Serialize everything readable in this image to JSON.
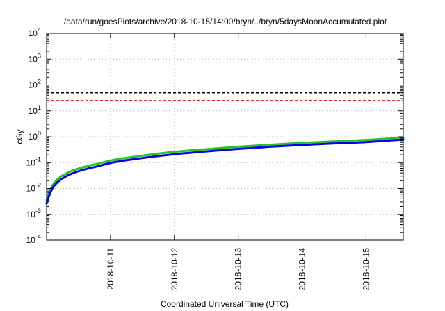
{
  "chart_data": {
    "type": "line",
    "title": "/data/run/goesPlots/archive/2018-10-15/14:00/bryn/../bryn/5daysMoonAccumulated.plot",
    "xlabel": "Coordinated Universal Time (UTC)",
    "ylabel": "cGy",
    "y_scale": "log",
    "ylim": [
      0.0001,
      10000
    ],
    "xlim": [
      "2018-10-10T00:00",
      "2018-10-15T14:00"
    ],
    "grid": true,
    "x_ticks": [
      "2018-10-11",
      "2018-10-12",
      "2018-10-13",
      "2018-10-14",
      "2018-10-15"
    ],
    "y_ticks": [
      {
        "base": "10",
        "exp": "-4",
        "value": 0.0001
      },
      {
        "base": "10",
        "exp": "-3",
        "value": 0.001
      },
      {
        "base": "10",
        "exp": "-2",
        "value": 0.01
      },
      {
        "base": "10",
        "exp": "-1",
        "value": 0.1
      },
      {
        "base": "10",
        "exp": "0",
        "value": 1
      },
      {
        "base": "10",
        "exp": "1",
        "value": 10
      },
      {
        "base": "10",
        "exp": "2",
        "value": 100
      },
      {
        "base": "10",
        "exp": "3",
        "value": 1000
      },
      {
        "base": "10",
        "exp": "4",
        "value": 10000
      }
    ],
    "reference_lines": [
      {
        "value": 50,
        "color": "#000000",
        "style": "dashed"
      },
      {
        "value": 25,
        "color": "#ff0000",
        "style": "dashed"
      }
    ],
    "series": [
      {
        "color": "#22c522",
        "x": [
          "2018-10-10T00:00",
          "2018-10-10T01:12",
          "2018-10-10T02:24",
          "2018-10-10T04:48",
          "2018-10-10T07:12",
          "2018-10-10T09:36",
          "2018-10-10T14:24",
          "2018-10-10T19:12",
          "2018-10-11T00:00",
          "2018-10-11T12:00",
          "2018-10-12T00:00",
          "2018-10-12T12:00",
          "2018-10-13T00:00",
          "2018-10-13T12:00",
          "2018-10-14T00:00",
          "2018-10-14T12:00",
          "2018-10-15T00:00",
          "2018-10-15T14:00"
        ],
        "values": [
          0.0035,
          0.008,
          0.014,
          0.026,
          0.037,
          0.048,
          0.069,
          0.09,
          0.12,
          0.185,
          0.26,
          0.33,
          0.41,
          0.49,
          0.58,
          0.66,
          0.75,
          0.92
        ]
      },
      {
        "color": "#0000ee",
        "x": [
          "2018-10-10T00:00",
          "2018-10-10T01:12",
          "2018-10-10T02:24",
          "2018-10-10T04:48",
          "2018-10-10T07:12",
          "2018-10-10T09:36",
          "2018-10-10T14:24",
          "2018-10-10T19:12",
          "2018-10-11T00:00",
          "2018-10-11T12:00",
          "2018-10-12T00:00",
          "2018-10-12T12:00",
          "2018-10-13T00:00",
          "2018-10-13T12:00",
          "2018-10-14T00:00",
          "2018-10-14T12:00",
          "2018-10-15T00:00",
          "2018-10-15T14:00"
        ],
        "values": [
          0.0026,
          0.006,
          0.011,
          0.02,
          0.029,
          0.038,
          0.055,
          0.072,
          0.097,
          0.15,
          0.21,
          0.27,
          0.34,
          0.41,
          0.48,
          0.55,
          0.62,
          0.78
        ]
      }
    ]
  }
}
